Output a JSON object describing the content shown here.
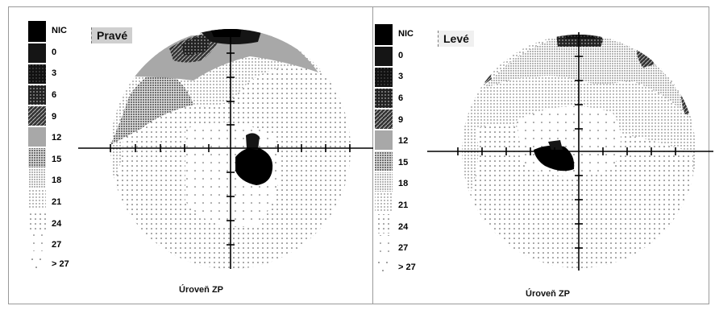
{
  "legend": {
    "levels": [
      "NIC",
      "0",
      "3",
      "6",
      "9",
      "12",
      "15",
      "18",
      "21",
      "24",
      "27",
      "> 27"
    ]
  },
  "panels": [
    {
      "eye_label": "Pravé",
      "caption": "Úroveň ZP"
    },
    {
      "eye_label": "Levé",
      "caption": "Úroveň ZP"
    }
  ]
}
